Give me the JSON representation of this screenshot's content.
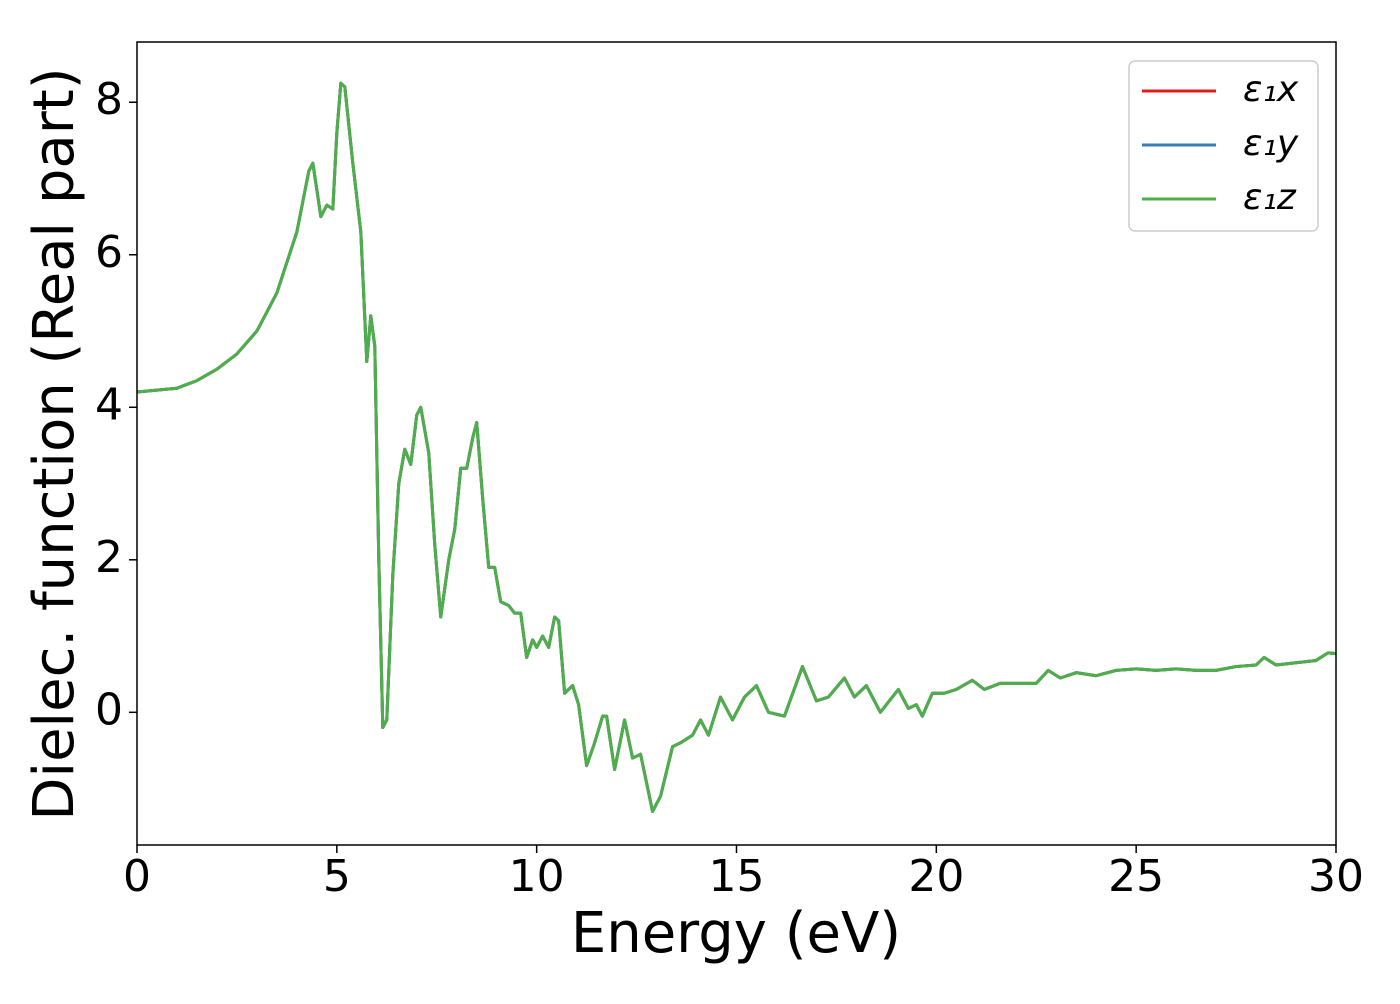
{
  "chart_data": {
    "type": "line",
    "xlabel": "Energy (eV)",
    "ylabel": "Dielec. function (Real part)",
    "x": [
      0,
      1,
      1.5,
      2,
      2.5,
      3,
      3.5,
      4,
      4.3,
      4.4,
      4.6,
      4.75,
      4.9,
      5.0,
      5.1,
      5.2,
      5.4,
      5.6,
      5.75,
      5.85,
      5.95,
      6.05,
      6.15,
      6.25,
      6.4,
      6.55,
      6.7,
      6.85,
      7.0,
      7.1,
      7.3,
      7.45,
      7.6,
      7.8,
      7.95,
      8.1,
      8.25,
      8.4,
      8.5,
      8.65,
      8.8,
      8.95,
      9.1,
      9.3,
      9.45,
      9.6,
      9.75,
      9.9,
      10.0,
      10.15,
      10.3,
      10.45,
      10.55,
      10.7,
      10.9,
      11.05,
      11.25,
      11.45,
      11.65,
      11.75,
      11.95,
      12.2,
      12.4,
      12.6,
      12.9,
      13.1,
      13.4,
      13.6,
      13.9,
      14.1,
      14.3,
      14.6,
      14.9,
      15.2,
      15.5,
      15.8,
      16.2,
      16.65,
      17.0,
      17.3,
      17.7,
      17.95,
      18.25,
      18.6,
      19.05,
      19.3,
      19.5,
      19.65,
      19.9,
      20.2,
      20.5,
      20.9,
      21.2,
      21.6,
      22.0,
      22.5,
      22.8,
      23.1,
      23.5,
      24,
      24.5,
      25,
      25.5,
      26,
      26.5,
      27,
      27.5,
      28,
      28.2,
      28.5,
      29,
      29.5,
      29.8,
      30
    ],
    "series": [
      {
        "name": "ε₁x",
        "color": "#e41a1c",
        "values": [
          4.2,
          4.25,
          4.35,
          4.5,
          4.7,
          5.0,
          5.5,
          6.3,
          7.1,
          7.2,
          6.5,
          6.65,
          6.6,
          7.6,
          8.25,
          8.2,
          7.2,
          6.3,
          4.6,
          5.2,
          4.8,
          2,
          -0.2,
          -0.1,
          1.8,
          3.0,
          3.45,
          3.25,
          3.9,
          4.0,
          3.4,
          2.2,
          1.25,
          2.0,
          2.4,
          3.2,
          3.2,
          3.6,
          3.8,
          2.8,
          1.9,
          1.9,
          1.45,
          1.4,
          1.3,
          1.3,
          0.72,
          0.95,
          0.85,
          1.0,
          0.85,
          1.25,
          1.2,
          0.25,
          0.35,
          0.1,
          -0.7,
          -0.4,
          -0.05,
          -0.05,
          -0.75,
          -0.1,
          -0.6,
          -0.55,
          -1.3,
          -1.1,
          -0.45,
          -0.4,
          -0.3,
          -0.1,
          -0.3,
          0.2,
          -0.1,
          0.2,
          0.35,
          0.0,
          -0.05,
          0.6,
          0.15,
          0.2,
          0.45,
          0.2,
          0.35,
          0.0,
          0.3,
          0.05,
          0.1,
          -0.05,
          0.25,
          0.25,
          0.3,
          0.42,
          0.3,
          0.38,
          0.38,
          0.38,
          0.55,
          0.45,
          0.52,
          0.48,
          0.55,
          0.57,
          0.55,
          0.57,
          0.55,
          0.55,
          0.6,
          0.62,
          0.72,
          0.62,
          0.65,
          0.68,
          0.78,
          0.77
        ]
      },
      {
        "name": "ε₁y",
        "color": "#377eb8",
        "values": [
          4.2,
          4.25,
          4.35,
          4.5,
          4.7,
          5.0,
          5.5,
          6.3,
          7.1,
          7.2,
          6.5,
          6.65,
          6.6,
          7.6,
          8.25,
          8.2,
          7.2,
          6.3,
          4.6,
          5.2,
          4.8,
          2,
          -0.2,
          -0.1,
          1.8,
          3.0,
          3.45,
          3.25,
          3.9,
          4.0,
          3.4,
          2.2,
          1.25,
          2.0,
          2.4,
          3.2,
          3.2,
          3.6,
          3.8,
          2.8,
          1.9,
          1.9,
          1.45,
          1.4,
          1.3,
          1.3,
          0.72,
          0.95,
          0.85,
          1.0,
          0.85,
          1.25,
          1.2,
          0.25,
          0.35,
          0.1,
          -0.7,
          -0.4,
          -0.05,
          -0.05,
          -0.75,
          -0.1,
          -0.6,
          -0.55,
          -1.3,
          -1.1,
          -0.45,
          -0.4,
          -0.3,
          -0.1,
          -0.3,
          0.2,
          -0.1,
          0.2,
          0.35,
          0.0,
          -0.05,
          0.6,
          0.15,
          0.2,
          0.45,
          0.2,
          0.35,
          0.0,
          0.3,
          0.05,
          0.1,
          -0.05,
          0.25,
          0.25,
          0.3,
          0.42,
          0.3,
          0.38,
          0.38,
          0.38,
          0.55,
          0.45,
          0.52,
          0.48,
          0.55,
          0.57,
          0.55,
          0.57,
          0.55,
          0.55,
          0.6,
          0.62,
          0.72,
          0.62,
          0.65,
          0.68,
          0.78,
          0.77
        ]
      },
      {
        "name": "ε₁z",
        "color": "#4daf4a",
        "values": [
          4.2,
          4.25,
          4.35,
          4.5,
          4.7,
          5.0,
          5.5,
          6.3,
          7.1,
          7.2,
          6.5,
          6.65,
          6.6,
          7.6,
          8.25,
          8.2,
          7.2,
          6.3,
          4.6,
          5.2,
          4.8,
          2,
          -0.2,
          -0.1,
          1.8,
          3.0,
          3.45,
          3.25,
          3.9,
          4.0,
          3.4,
          2.2,
          1.25,
          2.0,
          2.4,
          3.2,
          3.2,
          3.6,
          3.8,
          2.8,
          1.9,
          1.9,
          1.45,
          1.4,
          1.3,
          1.3,
          0.72,
          0.95,
          0.85,
          1.0,
          0.85,
          1.25,
          1.2,
          0.25,
          0.35,
          0.1,
          -0.7,
          -0.4,
          -0.05,
          -0.05,
          -0.75,
          -0.1,
          -0.6,
          -0.55,
          -1.3,
          -1.1,
          -0.45,
          -0.4,
          -0.3,
          -0.1,
          -0.3,
          0.2,
          -0.1,
          0.2,
          0.35,
          0.0,
          -0.05,
          0.6,
          0.15,
          0.2,
          0.45,
          0.2,
          0.35,
          0.0,
          0.3,
          0.05,
          0.1,
          -0.05,
          0.25,
          0.25,
          0.3,
          0.42,
          0.3,
          0.38,
          0.38,
          0.38,
          0.55,
          0.45,
          0.52,
          0.48,
          0.55,
          0.57,
          0.55,
          0.57,
          0.55,
          0.55,
          0.6,
          0.62,
          0.72,
          0.62,
          0.65,
          0.68,
          0.78,
          0.77
        ]
      }
    ],
    "xlim": [
      0,
      30
    ],
    "xticks": [
      0,
      5,
      10,
      15,
      20,
      25,
      30
    ],
    "ylim": [
      -1.74,
      8.79
    ],
    "yticks": [
      0,
      2,
      4,
      6,
      8
    ],
    "legend": "upper right"
  }
}
